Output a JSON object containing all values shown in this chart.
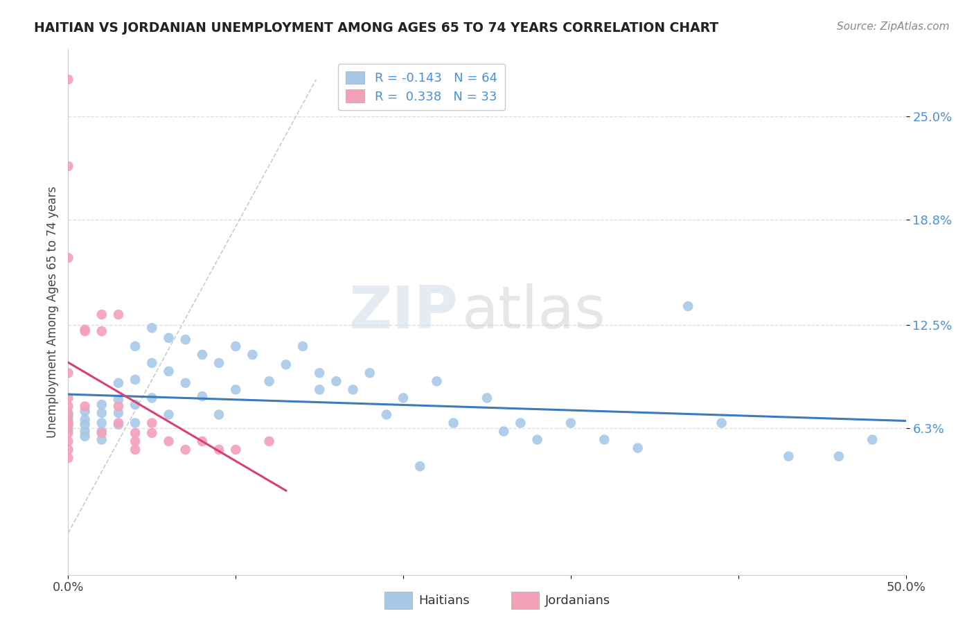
{
  "title": "HAITIAN VS JORDANIAN UNEMPLOYMENT AMONG AGES 65 TO 74 YEARS CORRELATION CHART",
  "source_text": "Source: ZipAtlas.com",
  "ylabel": "Unemployment Among Ages 65 to 74 years",
  "xlim": [
    0.0,
    0.5
  ],
  "ylim": [
    -0.025,
    0.29
  ],
  "ytick_vals": [
    0.063,
    0.125,
    0.188,
    0.25
  ],
  "ytick_labels": [
    "6.3%",
    "12.5%",
    "18.8%",
    "25.0%"
  ],
  "R_haitian": -0.143,
  "N_haitian": 64,
  "R_jordanian": 0.338,
  "N_jordanian": 33,
  "haitian_color": "#a8c8e8",
  "jordanian_color": "#f4a0b8",
  "haitian_line_color": "#3a7abf",
  "jordanian_line_color": "#d94070",
  "watermark_zip": "ZIP",
  "watermark_atlas": "atlas",
  "background_color": "#ffffff",
  "haitians_x": [
    0.0,
    0.0,
    0.0,
    0.0,
    0.0,
    0.0,
    0.01,
    0.01,
    0.01,
    0.01,
    0.01,
    0.02,
    0.02,
    0.02,
    0.02,
    0.02,
    0.03,
    0.03,
    0.03,
    0.03,
    0.04,
    0.04,
    0.04,
    0.04,
    0.05,
    0.05,
    0.05,
    0.06,
    0.06,
    0.06,
    0.07,
    0.07,
    0.08,
    0.08,
    0.09,
    0.09,
    0.1,
    0.1,
    0.11,
    0.12,
    0.13,
    0.14,
    0.15,
    0.15,
    0.16,
    0.17,
    0.18,
    0.19,
    0.2,
    0.21,
    0.22,
    0.23,
    0.25,
    0.26,
    0.27,
    0.28,
    0.3,
    0.32,
    0.34,
    0.37,
    0.39,
    0.43,
    0.46,
    0.48
  ],
  "haitians_y": [
    0.072,
    0.07,
    0.068,
    0.066,
    0.064,
    0.062,
    0.073,
    0.068,
    0.065,
    0.061,
    0.058,
    0.077,
    0.072,
    0.066,
    0.061,
    0.056,
    0.09,
    0.08,
    0.072,
    0.065,
    0.112,
    0.092,
    0.077,
    0.066,
    0.123,
    0.102,
    0.081,
    0.117,
    0.097,
    0.071,
    0.116,
    0.09,
    0.107,
    0.082,
    0.102,
    0.071,
    0.112,
    0.086,
    0.107,
    0.091,
    0.101,
    0.112,
    0.096,
    0.086,
    0.091,
    0.086,
    0.096,
    0.071,
    0.081,
    0.04,
    0.091,
    0.066,
    0.081,
    0.061,
    0.066,
    0.056,
    0.066,
    0.056,
    0.051,
    0.136,
    0.066,
    0.046,
    0.046,
    0.056
  ],
  "jordanians_x": [
    0.0,
    0.0,
    0.0,
    0.0,
    0.0,
    0.0,
    0.0,
    0.0,
    0.0,
    0.0,
    0.0,
    0.0,
    0.0,
    0.01,
    0.01,
    0.01,
    0.02,
    0.02,
    0.02,
    0.03,
    0.03,
    0.03,
    0.04,
    0.04,
    0.04,
    0.05,
    0.05,
    0.06,
    0.07,
    0.08,
    0.09,
    0.1,
    0.12
  ],
  "jordanians_y": [
    0.272,
    0.22,
    0.165,
    0.096,
    0.081,
    0.076,
    0.071,
    0.066,
    0.065,
    0.06,
    0.055,
    0.05,
    0.045,
    0.122,
    0.121,
    0.076,
    0.131,
    0.121,
    0.06,
    0.131,
    0.076,
    0.066,
    0.06,
    0.055,
    0.05,
    0.066,
    0.06,
    0.055,
    0.05,
    0.055,
    0.05,
    0.05,
    0.055
  ],
  "diag_line_x": [
    0.0,
    0.148
  ],
  "diag_line_y": [
    0.0,
    0.272
  ]
}
